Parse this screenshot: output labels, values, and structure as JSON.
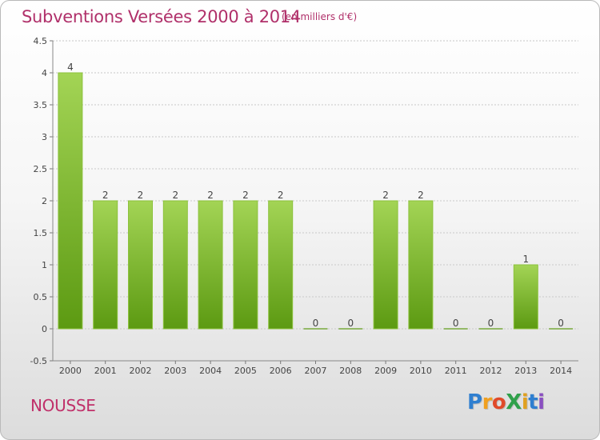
{
  "header": {
    "title": "Subventions Versées 2000 à 2014",
    "unit": "(en milliers d'€)"
  },
  "footer": {
    "commune": "NOUSSE",
    "brand_letters": [
      {
        "ch": "P",
        "color": "#2f7fd0"
      },
      {
        "ch": "r",
        "color": "#f0a020"
      },
      {
        "ch": "o",
        "color": "#e04a2a"
      },
      {
        "ch": "X",
        "color": "#2fa04a"
      },
      {
        "ch": "i",
        "color": "#e0a020"
      },
      {
        "ch": "t",
        "color": "#2f7fd0"
      },
      {
        "ch": "i",
        "color": "#8a4fc0"
      }
    ]
  },
  "colors": {
    "title": "#b0306a",
    "bar_light": "#a3d455",
    "bar_dark": "#5c9a12",
    "grid": "#c8c8c8"
  },
  "chart_data": {
    "type": "bar",
    "categories": [
      "2000",
      "2001",
      "2002",
      "2003",
      "2004",
      "2005",
      "2006",
      "2007",
      "2008",
      "2009",
      "2010",
      "2011",
      "2012",
      "2013",
      "2014"
    ],
    "values": [
      4,
      2,
      2,
      2,
      2,
      2,
      2,
      0,
      0,
      2,
      2,
      0,
      0,
      1,
      0
    ],
    "data_labels": [
      "4",
      "2",
      "2",
      "2",
      "2",
      "2",
      "2",
      "0",
      "0",
      "2",
      "2",
      "0",
      "0",
      "1",
      "0"
    ],
    "ylim": [
      -0.5,
      4.5
    ],
    "yticks": [
      "-0.5",
      "0",
      "0.5",
      "1",
      "1.5",
      "2",
      "2.5",
      "3",
      "3.5",
      "4",
      "4.5"
    ],
    "grid": true,
    "legend": "none"
  }
}
